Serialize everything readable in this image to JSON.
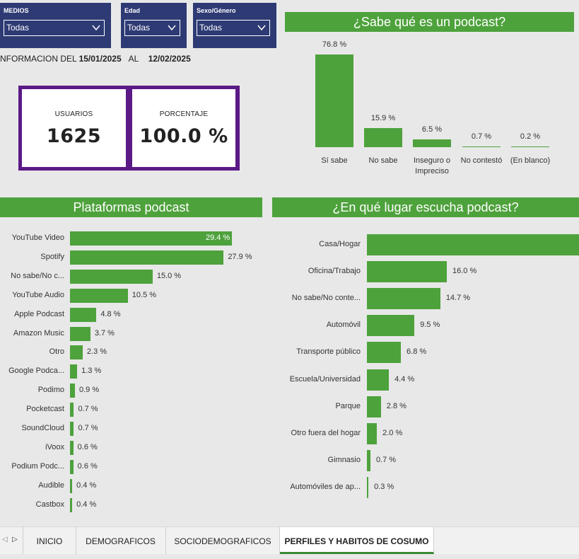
{
  "filters": [
    {
      "label": "MEDIOS",
      "value": "Todas"
    },
    {
      "label": "Edad",
      "value": "Todas"
    },
    {
      "label": "Sexo/Género",
      "value": "Todas"
    }
  ],
  "info": {
    "prefix": "NFORMACION DEL",
    "from": "15/01/2025",
    "al": "AL",
    "to": "12/02/2025"
  },
  "kpis": [
    {
      "label": "USUARIOS",
      "value": "1625"
    },
    {
      "label": "PORCENTAJE",
      "value": "100.0 %"
    }
  ],
  "colors": {
    "bar": "#4ea23c",
    "navy": "#2d3a74",
    "purple": "#5b1a86",
    "tab_active": "#3a8a35"
  },
  "chart_data": [
    {
      "type": "bar",
      "title": "¿Sabe qué es un podcast?",
      "orientation": "vertical",
      "categories": [
        "Sí sabe",
        "No sabe",
        "Inseguro o Impreciso",
        "No contestó",
        "(En blanco)"
      ],
      "values": [
        76.8,
        15.9,
        6.5,
        0.7,
        0.2
      ],
      "labels": [
        "76.8 %",
        "15.9 %",
        "6.5 %",
        "0.7 %",
        "0.2 %"
      ]
    },
    {
      "type": "bar",
      "title": "Plataformas podcast",
      "orientation": "horizontal",
      "categories": [
        "YouTube Video",
        "Spotify",
        "No sabe/No c...",
        "YouTube Audio",
        "Apple Podcast",
        "Amazon Music",
        "Otro",
        "Google Podca...",
        "Podimo",
        "Pocketcast",
        "SoundCloud",
        "iVoox",
        "Podium Podc...",
        "Audible",
        "Castbox"
      ],
      "values": [
        29.4,
        27.9,
        15.0,
        10.5,
        4.8,
        3.7,
        2.3,
        1.3,
        0.9,
        0.7,
        0.7,
        0.6,
        0.6,
        0.4,
        0.4
      ],
      "labels": [
        "29.4 %",
        "27.9 %",
        "15.0 %",
        "10.5 %",
        "4.8 %",
        "3.7 %",
        "2.3 %",
        "1.3 %",
        "0.9 %",
        "0.7 %",
        "0.7 %",
        "0.6 %",
        "0.6 %",
        "0.4 %",
        "0.4 %"
      ]
    },
    {
      "type": "bar",
      "title": "¿En qué lugar escucha podcast?",
      "orientation": "horizontal",
      "categories": [
        "Casa/Hogar",
        "Oficina/Trabajo",
        "No sabe/No conte...",
        "Automóvil",
        "Transporte público",
        "Escuela/Universidad",
        "Parque",
        "Otro fuera del hogar",
        "Gimnasio",
        "Automóviles de ap..."
      ],
      "values": [
        null,
        16.0,
        14.7,
        9.5,
        6.8,
        4.4,
        2.8,
        2.0,
        0.7,
        0.3
      ],
      "labels": [
        "",
        "16.0 %",
        "14.7 %",
        "9.5 %",
        "6.8 %",
        "4.4 %",
        "2.8 %",
        "2.0 %",
        "0.7 %",
        "0.3 %"
      ]
    }
  ],
  "tabs": [
    {
      "label": "INICIO",
      "active": false
    },
    {
      "label": "DEMOGRAFICOS",
      "active": false
    },
    {
      "label": "SOCIODEMOGRAFICOS",
      "active": false
    },
    {
      "label": "PERFILES Y HABITOS DE COSUMO",
      "active": true
    }
  ]
}
